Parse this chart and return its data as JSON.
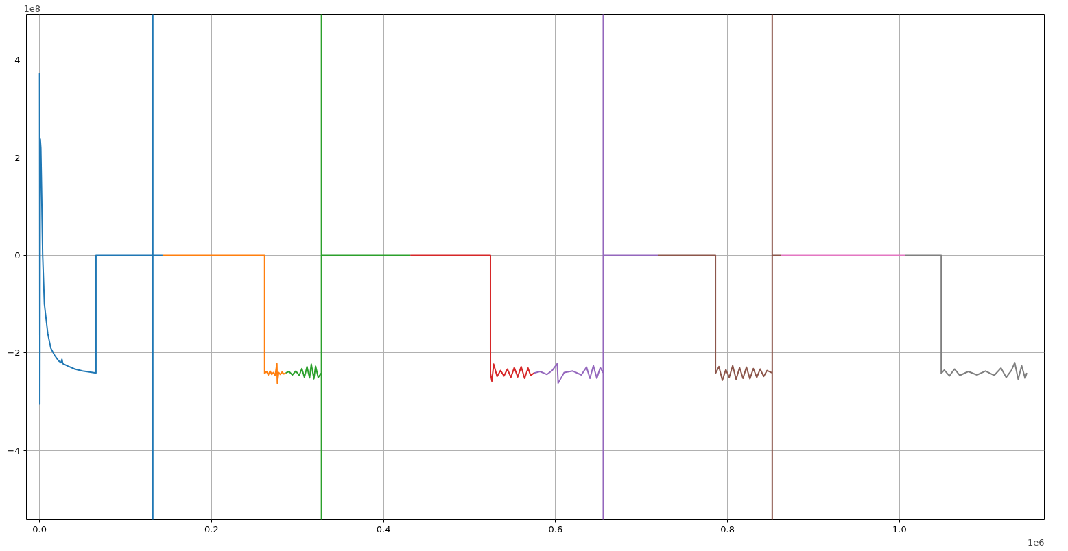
{
  "chart_data": {
    "type": "line",
    "grid": true,
    "line_style": "solid",
    "annotations": [
      "1e8",
      "1e6"
    ],
    "xlim": [
      -0.0153,
      1.1684
    ],
    "ylim": [
      -5.42,
      4.93
    ],
    "xticks": [
      {
        "value": 0,
        "label": "0.0"
      },
      0.2,
      0.4,
      0.6,
      0.8,
      {
        "value": 1,
        "label": "1.0"
      }
    ],
    "yticks": [
      {
        "value": -4,
        "label": "−4"
      },
      {
        "value": -2,
        "label": "−2"
      },
      0,
      2,
      4
    ],
    "series": [
      {
        "color": "#1f77b4",
        "x": [
          0,
          0.0003,
          0.0008,
          0.0015,
          0.0025,
          0.0036,
          0.0056,
          0.0095,
          0.013,
          0.0175,
          0.022,
          0.025,
          0.026,
          0.027,
          0.033,
          0.041,
          0.05,
          0.058,
          0.0656,
          0.0656,
          0.1317,
          0.1317,
          0.1317,
          0.1317,
          0.143
        ],
        "values": [
          3.73,
          -3.05,
          2.38,
          2.2,
          1.2,
          0,
          -1.0,
          -1.6,
          -1.9,
          -2.05,
          -2.16,
          -2.2,
          -2.13,
          -2.22,
          -2.27,
          -2.33,
          -2.37,
          -2.39,
          -2.41,
          0,
          0,
          4.93,
          -5.42,
          0,
          0
        ]
      },
      {
        "color": "#ff7f0e",
        "x": [
          0.143,
          0.2617,
          0.2617,
          0.264,
          0.266,
          0.268,
          0.27,
          0.272,
          0.274,
          0.276,
          0.2765,
          0.278,
          0.28,
          0.282,
          0.284,
          0.2864
        ],
        "values": [
          0,
          0,
          -2.42,
          -2.38,
          -2.45,
          -2.37,
          -2.44,
          -2.4,
          -2.46,
          -2.22,
          -2.62,
          -2.4,
          -2.44,
          -2.39,
          -2.43,
          -2.41
        ]
      },
      {
        "color": "#2ca02c",
        "x": [
          0.2864,
          0.29,
          0.294,
          0.298,
          0.302,
          0.305,
          0.308,
          0.311,
          0.314,
          0.316,
          0.319,
          0.321,
          0.324,
          0.3278,
          0.3278,
          0.3278,
          0.3278,
          0.4312
        ],
        "values": [
          -2.41,
          -2.38,
          -2.45,
          -2.37,
          -2.46,
          -2.32,
          -2.5,
          -2.28,
          -2.51,
          -2.23,
          -2.53,
          -2.27,
          -2.5,
          -2.41,
          4.93,
          -5.42,
          0,
          0
        ]
      },
      {
        "color": "#d62728",
        "x": [
          0.4312,
          0.5243,
          0.5243,
          0.526,
          0.528,
          0.532,
          0.536,
          0.54,
          0.544,
          0.548,
          0.552,
          0.556,
          0.56,
          0.564,
          0.568,
          0.571,
          0.5752
        ],
        "values": [
          0,
          0,
          -2.42,
          -2.58,
          -2.23,
          -2.48,
          -2.36,
          -2.47,
          -2.33,
          -2.5,
          -2.3,
          -2.49,
          -2.28,
          -2.52,
          -2.31,
          -2.46,
          -2.41
        ]
      },
      {
        "color": "#9467bd",
        "x": [
          0.5752,
          0.582,
          0.59,
          0.596,
          0.602,
          0.603,
          0.61,
          0.62,
          0.63,
          0.636,
          0.64,
          0.644,
          0.648,
          0.652,
          0.6555,
          0.6555,
          0.6555,
          0.6555,
          0.7192
        ],
        "values": [
          -2.41,
          -2.38,
          -2.44,
          -2.36,
          -2.22,
          -2.62,
          -2.4,
          -2.37,
          -2.45,
          -2.29,
          -2.52,
          -2.26,
          -2.52,
          -2.3,
          -2.41,
          4.93,
          -5.42,
          0,
          0
        ]
      },
      {
        "color": "#8c564b",
        "x": [
          0.7192,
          0.786,
          0.786,
          0.79,
          0.794,
          0.798,
          0.802,
          0.806,
          0.81,
          0.814,
          0.818,
          0.822,
          0.826,
          0.83,
          0.834,
          0.838,
          0.842,
          0.846,
          0.852,
          0.852,
          0.852,
          0.852,
          0.8624
        ],
        "values": [
          0,
          0,
          -2.42,
          -2.28,
          -2.56,
          -2.34,
          -2.5,
          -2.26,
          -2.54,
          -2.3,
          -2.52,
          -2.29,
          -2.53,
          -2.32,
          -2.5,
          -2.33,
          -2.48,
          -2.36,
          -2.41,
          4.93,
          -5.42,
          0,
          0
        ]
      },
      {
        "color": "#e377c2",
        "x": [
          0.8624,
          1.0064
        ],
        "values": [
          0,
          0
        ]
      },
      {
        "color": "#7f7f7f",
        "x": [
          1.0064,
          1.0485,
          1.0485,
          1.052,
          1.058,
          1.064,
          1.07,
          1.08,
          1.09,
          1.1,
          1.11,
          1.118,
          1.124,
          1.13,
          1.134,
          1.138,
          1.142,
          1.146,
          1.148
        ],
        "values": [
          0,
          0,
          -2.42,
          -2.35,
          -2.47,
          -2.33,
          -2.46,
          -2.38,
          -2.45,
          -2.37,
          -2.46,
          -2.31,
          -2.5,
          -2.36,
          -2.2,
          -2.54,
          -2.26,
          -2.52,
          -2.41
        ]
      }
    ]
  }
}
